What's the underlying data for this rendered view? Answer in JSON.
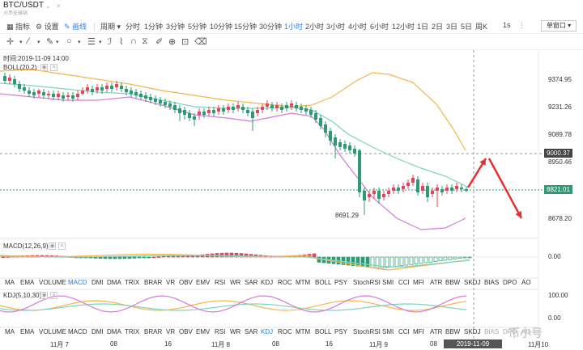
{
  "header": {
    "pair": "BTC/USDT",
    "exchange": "火币全球站"
  },
  "toolbar": {
    "indicator_label": "指标",
    "settings_label": "设置",
    "draw_label": "画线",
    "period_label": "周期",
    "periods": [
      "分时",
      "1分钟",
      "3分钟",
      "5分钟",
      "10分钟",
      "15分钟",
      "30分钟",
      "1小时",
      "2小时",
      "3小时",
      "4小时",
      "6小时",
      "12小时",
      "1日",
      "2日",
      "3日",
      "5日",
      "周K"
    ],
    "active_period": "1小时",
    "interval_1s": "1s",
    "window_mode": "单窗口"
  },
  "main_chart": {
    "time_label": "时间:2019-11-09 14:00",
    "boll_label": "BOLL(20,2)",
    "prices": [
      "9374.95",
      "9231.26",
      "9089.78",
      "8950.46",
      "8678.20"
    ],
    "crosshair_price": "9000.37",
    "last_price": "8821.01",
    "low_label": "8691.29"
  },
  "macd": {
    "label": "MACD(12,26,9)",
    "zero": "0.00"
  },
  "indicator_tabs_1": [
    "MA",
    "EMA",
    "VOLUME",
    "MACD",
    "DMI",
    "DMA",
    "TRIX",
    "BRAR",
    "VR",
    "OBV",
    "EMV",
    "RSI",
    "WR",
    "SAR",
    "KDJ",
    "ROC",
    "MTM",
    "BOLL",
    "PSY",
    "StochRSI",
    "SMI",
    "CCI",
    "MFI",
    "ATR",
    "BBW",
    "SKDJ",
    "BIAS",
    "DPO",
    "AO"
  ],
  "indicator_tabs_1_active": "MACD",
  "kdj": {
    "label": "KDJ(5,10,30)",
    "top": "100.00",
    "zero": "0.00"
  },
  "indicator_tabs_2": [
    "MA",
    "EMA",
    "VOLUME",
    "MACD",
    "DMI",
    "DMA",
    "TRIX",
    "BRAR",
    "VR",
    "OBV",
    "EMV",
    "RSI",
    "WR",
    "SAR",
    "KDJ",
    "ROC",
    "MTM",
    "BOLL",
    "PSY",
    "StochRSI",
    "SMI",
    "CCI",
    "MFI",
    "ATR",
    "BBW",
    "SKDJ",
    "BIAS",
    "DPO",
    "AO"
  ],
  "indicator_tabs_2_active": "KDJ",
  "x_axis": [
    "11月 7",
    "08",
    "16",
    "11月 8",
    "08",
    "16",
    "11月 9",
    "08",
    "11月10"
  ],
  "crosshair_time": "2019-11-09 14:00:00",
  "watermark": "币小号",
  "colors": {
    "up": "#e0475c",
    "down": "#2c9b74",
    "boll_upper": "#f5b54a",
    "boll_mid": "#7dd3c0",
    "boll_lower": "#d67bd6",
    "accent": "#2b7de9",
    "arrow": "#e53030"
  }
}
